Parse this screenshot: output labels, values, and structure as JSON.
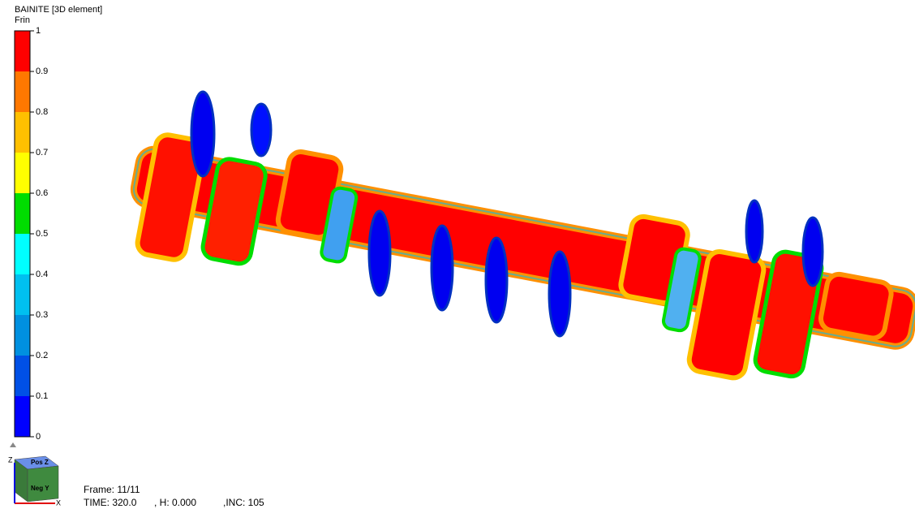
{
  "legend": {
    "title": "BAINITE [3D element]",
    "variable": "Frin",
    "ticks": [
      0,
      0.1,
      0.2,
      0.3,
      0.4,
      0.5,
      0.6,
      0.7,
      0.8,
      0.9,
      1
    ],
    "colors": [
      "#0000ff",
      "#0050e6",
      "#0090e0",
      "#00c0f0",
      "#00ffff",
      "#00dd00",
      "#ffff00",
      "#ffc000",
      "#ff7800",
      "#ff0000"
    ]
  },
  "triad": {
    "top_face": "Pos Z",
    "front_face": "Neg Y",
    "z_axis": "Z",
    "x_axis": "X"
  },
  "status": {
    "frame": "Frame: 11/11",
    "time": "TIME:  320.0",
    "h": ", H:  0.000",
    "inc": ",INC:  105"
  }
}
